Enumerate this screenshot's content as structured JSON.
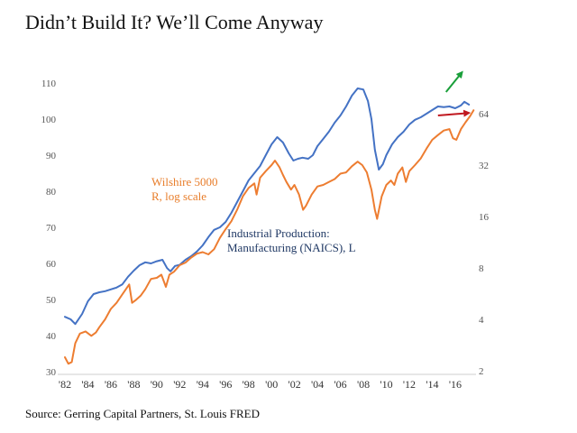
{
  "page": {
    "title": "Didn’t Build It?  We’ll Come Anyway",
    "source": "Source: Gerring Capital Partners, St. Louis FRED"
  },
  "chart_data": {
    "type": "line",
    "title": "Didn’t Build It?  We’ll Come Anyway",
    "x_range": [
      1982,
      2017.5
    ],
    "x_ticks": [
      "'82",
      "'84",
      "'86",
      "'88",
      "'90",
      "'92",
      "'94",
      "'96",
      "'98",
      "'00",
      "'02",
      "'04",
      "'06",
      "'08",
      "'10",
      "'12",
      "'14",
      "'16"
    ],
    "y_left": {
      "range": [
        30,
        115
      ],
      "ticks": [
        30,
        40,
        50,
        60,
        70,
        80,
        90,
        100,
        110
      ]
    },
    "y_right": {
      "scale": "log2",
      "range": [
        2,
        120
      ],
      "ticks": [
        2,
        4,
        8,
        16,
        32,
        64
      ]
    },
    "grid": false,
    "annotations": [
      {
        "text": [
          "Wilshire 5000",
          "R, log scale"
        ],
        "color": "#e87d2a"
      },
      {
        "text": [
          "Industrial Production:",
          "Manufacturing (NAICS), L"
        ],
        "color": "#1f3864"
      }
    ],
    "arrows": [
      {
        "color": "#1a9f3a",
        "from": [
          2015.2,
          107.5
        ],
        "to": [
          2016.6,
          113
        ]
      },
      {
        "color": "#c0181f",
        "from": [
          2014.5,
          101
        ],
        "to": [
          2017.2,
          101.7
        ]
      }
    ],
    "series": [
      {
        "name": "Industrial Production: Manufacturing (NAICS), L",
        "axis": "left",
        "color": "#4472c4",
        "points": [
          [
            1982.0,
            45.2
          ],
          [
            1982.5,
            44.5
          ],
          [
            1982.9,
            43.2
          ],
          [
            1983.5,
            46.0
          ],
          [
            1984.0,
            49.5
          ],
          [
            1984.5,
            51.5
          ],
          [
            1985.0,
            52.0
          ],
          [
            1985.5,
            52.3
          ],
          [
            1986.0,
            52.8
          ],
          [
            1986.5,
            53.3
          ],
          [
            1987.0,
            54.2
          ],
          [
            1987.5,
            56.3
          ],
          [
            1988.0,
            58.0
          ],
          [
            1988.5,
            59.5
          ],
          [
            1989.0,
            60.3
          ],
          [
            1989.5,
            60.0
          ],
          [
            1990.0,
            60.6
          ],
          [
            1990.5,
            61.0
          ],
          [
            1990.9,
            58.7
          ],
          [
            1991.2,
            57.8
          ],
          [
            1991.6,
            59.3
          ],
          [
            1992.0,
            59.6
          ],
          [
            1992.5,
            61.0
          ],
          [
            1993.0,
            62.0
          ],
          [
            1993.5,
            63.3
          ],
          [
            1994.0,
            65.0
          ],
          [
            1994.5,
            67.3
          ],
          [
            1995.0,
            69.3
          ],
          [
            1995.5,
            70.0
          ],
          [
            1996.0,
            71.5
          ],
          [
            1996.5,
            74.0
          ],
          [
            1997.0,
            77.0
          ],
          [
            1997.5,
            80.0
          ],
          [
            1998.0,
            83.0
          ],
          [
            1998.5,
            85.0
          ],
          [
            1999.0,
            87.0
          ],
          [
            1999.5,
            90.0
          ],
          [
            2000.0,
            93.0
          ],
          [
            2000.5,
            95.0
          ],
          [
            2001.0,
            93.5
          ],
          [
            2001.5,
            90.5
          ],
          [
            2001.9,
            88.5
          ],
          [
            2002.3,
            89.0
          ],
          [
            2002.7,
            89.3
          ],
          [
            2003.2,
            89.0
          ],
          [
            2003.6,
            90.0
          ],
          [
            2004.0,
            92.5
          ],
          [
            2004.5,
            94.5
          ],
          [
            2005.0,
            96.5
          ],
          [
            2005.5,
            99.0
          ],
          [
            2006.0,
            101.0
          ],
          [
            2006.5,
            103.5
          ],
          [
            2007.0,
            106.5
          ],
          [
            2007.5,
            108.5
          ],
          [
            2008.0,
            108.2
          ],
          [
            2008.4,
            105.0
          ],
          [
            2008.7,
            100.0
          ],
          [
            2009.0,
            91.5
          ],
          [
            2009.35,
            86.0
          ],
          [
            2009.7,
            87.5
          ],
          [
            2010.0,
            90.0
          ],
          [
            2010.5,
            93.0
          ],
          [
            2011.0,
            95.0
          ],
          [
            2011.5,
            96.5
          ],
          [
            2012.0,
            98.5
          ],
          [
            2012.5,
            99.8
          ],
          [
            2013.0,
            100.5
          ],
          [
            2013.5,
            101.5
          ],
          [
            2014.0,
            102.5
          ],
          [
            2014.5,
            103.5
          ],
          [
            2015.0,
            103.3
          ],
          [
            2015.5,
            103.5
          ],
          [
            2016.0,
            103.0
          ],
          [
            2016.5,
            103.8
          ],
          [
            2016.8,
            104.8
          ],
          [
            2017.2,
            104.0
          ]
        ]
      },
      {
        "name": "Wilshire 5000 R, log scale",
        "axis": "right",
        "color": "#ed7d31",
        "points": [
          [
            1982.0,
            2.4
          ],
          [
            1982.3,
            2.2
          ],
          [
            1982.6,
            2.25
          ],
          [
            1982.9,
            2.9
          ],
          [
            1983.3,
            3.3
          ],
          [
            1983.8,
            3.4
          ],
          [
            1984.3,
            3.2
          ],
          [
            1984.7,
            3.35
          ],
          [
            1985.0,
            3.6
          ],
          [
            1985.5,
            4.0
          ],
          [
            1986.0,
            4.6
          ],
          [
            1986.5,
            5.0
          ],
          [
            1987.0,
            5.6
          ],
          [
            1987.6,
            6.4
          ],
          [
            1987.85,
            5.0
          ],
          [
            1988.2,
            5.2
          ],
          [
            1988.6,
            5.5
          ],
          [
            1989.0,
            6.0
          ],
          [
            1989.5,
            6.9
          ],
          [
            1990.0,
            7.0
          ],
          [
            1990.4,
            7.3
          ],
          [
            1990.8,
            6.2
          ],
          [
            1991.1,
            7.3
          ],
          [
            1991.5,
            7.6
          ],
          [
            1992.0,
            8.3
          ],
          [
            1992.5,
            8.6
          ],
          [
            1993.0,
            9.2
          ],
          [
            1993.5,
            9.7
          ],
          [
            1994.0,
            9.9
          ],
          [
            1994.5,
            9.6
          ],
          [
            1995.0,
            10.3
          ],
          [
            1995.5,
            12.0
          ],
          [
            1996.0,
            13.5
          ],
          [
            1996.5,
            15.0
          ],
          [
            1997.0,
            17.5
          ],
          [
            1997.5,
            21.0
          ],
          [
            1998.0,
            23.5
          ],
          [
            1998.5,
            25.0
          ],
          [
            1998.7,
            21.5
          ],
          [
            1999.0,
            27.0
          ],
          [
            1999.5,
            29.5
          ],
          [
            2000.0,
            32.0
          ],
          [
            2000.3,
            34.0
          ],
          [
            2000.7,
            31.0
          ],
          [
            2001.0,
            28.0
          ],
          [
            2001.3,
            25.5
          ],
          [
            2001.7,
            23.0
          ],
          [
            2002.0,
            24.5
          ],
          [
            2002.4,
            21.5
          ],
          [
            2002.75,
            17.5
          ],
          [
            2003.0,
            18.5
          ],
          [
            2003.5,
            21.5
          ],
          [
            2004.0,
            24.0
          ],
          [
            2004.5,
            24.5
          ],
          [
            2005.0,
            25.5
          ],
          [
            2005.5,
            26.5
          ],
          [
            2006.0,
            28.5
          ],
          [
            2006.5,
            29.0
          ],
          [
            2007.0,
            31.5
          ],
          [
            2007.5,
            33.5
          ],
          [
            2007.9,
            32.0
          ],
          [
            2008.3,
            29.0
          ],
          [
            2008.7,
            23.0
          ],
          [
            2009.0,
            17.5
          ],
          [
            2009.2,
            15.5
          ],
          [
            2009.6,
            21.0
          ],
          [
            2010.0,
            24.5
          ],
          [
            2010.4,
            26.0
          ],
          [
            2010.7,
            24.5
          ],
          [
            2011.0,
            28.5
          ],
          [
            2011.4,
            31.0
          ],
          [
            2011.7,
            25.5
          ],
          [
            2012.0,
            29.5
          ],
          [
            2012.5,
            32.0
          ],
          [
            2013.0,
            35.0
          ],
          [
            2013.5,
            40.0
          ],
          [
            2014.0,
            45.0
          ],
          [
            2014.5,
            48.0
          ],
          [
            2015.0,
            51.0
          ],
          [
            2015.5,
            52.0
          ],
          [
            2015.8,
            46.0
          ],
          [
            2016.1,
            45.0
          ],
          [
            2016.5,
            52.0
          ],
          [
            2016.9,
            57.0
          ],
          [
            2017.3,
            62.0
          ],
          [
            2017.6,
            67.0
          ]
        ]
      }
    ]
  }
}
